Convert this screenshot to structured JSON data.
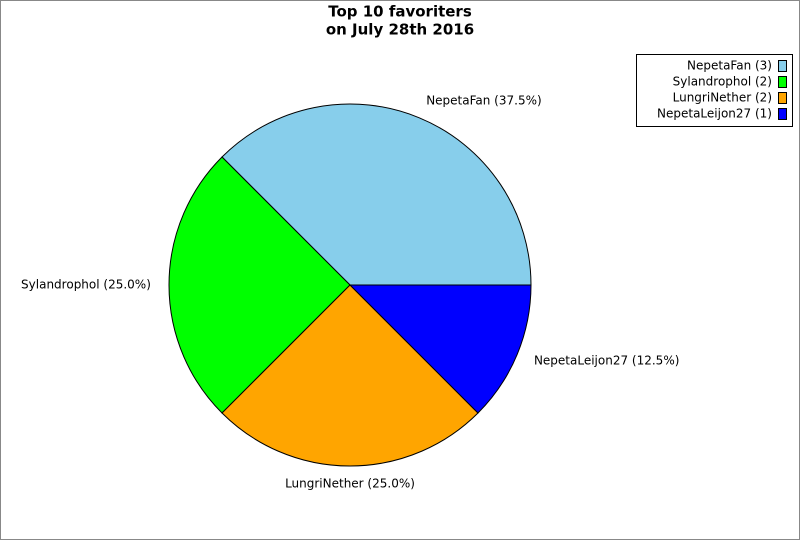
{
  "chart_data": {
    "type": "pie",
    "title": [
      "Top 10 favoriters",
      "on July 28th 2016"
    ],
    "categories": [
      "NepetaFan (3)",
      "Sylandrophol (2)",
      "LungriNether (2)",
      "NepetaLeijon27 (1)"
    ],
    "values": [
      37.5,
      25.0,
      25.0,
      12.5
    ],
    "value_labels": [
      "NepetaFan (37.5%)",
      "Sylandrophol (25.0%)",
      "LungriNether (25.0%)",
      "NepetaLeijon27 (12.5%)"
    ],
    "colors": [
      "#87ceeb",
      "#00ff00",
      "#ffa500",
      "#0000ff"
    ],
    "legend": "upper right"
  }
}
